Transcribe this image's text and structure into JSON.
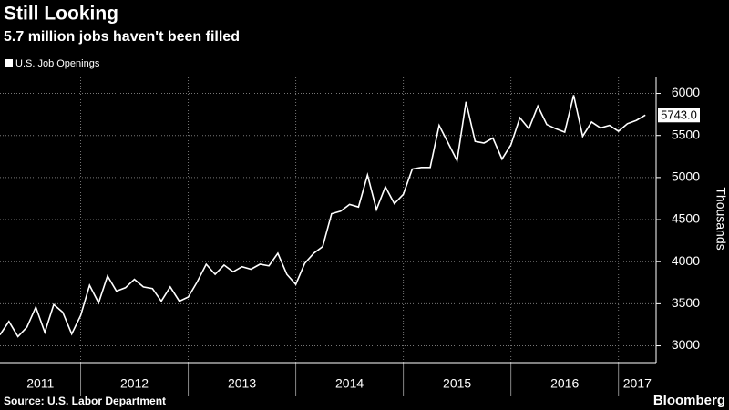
{
  "chart_data": {
    "type": "line",
    "title": "Still Looking",
    "subtitle": "5.7 million jobs haven't been filled",
    "y_axis_label": "Thousands",
    "source": "Source: U.S. Labor Department",
    "brand": "Bloomberg",
    "end_label": "5743.0",
    "x": [
      2011.25,
      2011.333,
      2011.417,
      2011.5,
      2011.583,
      2011.667,
      2011.75,
      2011.833,
      2011.917,
      2012,
      2012.083,
      2012.167,
      2012.25,
      2012.333,
      2012.417,
      2012.5,
      2012.583,
      2012.667,
      2012.75,
      2012.833,
      2012.917,
      2013,
      2013.083,
      2013.167,
      2013.25,
      2013.333,
      2013.417,
      2013.5,
      2013.583,
      2013.667,
      2013.75,
      2013.833,
      2013.917,
      2014,
      2014.083,
      2014.167,
      2014.25,
      2014.333,
      2014.417,
      2014.5,
      2014.583,
      2014.667,
      2014.75,
      2014.833,
      2014.917,
      2015,
      2015.083,
      2015.167,
      2015.25,
      2015.333,
      2015.417,
      2015.5,
      2015.583,
      2015.667,
      2015.75,
      2015.833,
      2015.917,
      2016,
      2016.083,
      2016.167,
      2016.25,
      2016.333,
      2016.417,
      2016.5,
      2016.583,
      2016.667,
      2016.75,
      2016.833,
      2016.917,
      2017,
      2017.083,
      2017.167,
      2017.25
    ],
    "series": [
      {
        "name": "U.S. Job Openings",
        "color": "#ffffff",
        "values": [
          3130,
          3290,
          3110,
          3220,
          3460,
          3160,
          3490,
          3400,
          3140,
          3360,
          3720,
          3510,
          3830,
          3650,
          3690,
          3790,
          3700,
          3680,
          3530,
          3700,
          3530,
          3580,
          3760,
          3970,
          3850,
          3960,
          3880,
          3940,
          3910,
          3970,
          3950,
          4100,
          3850,
          3730,
          3980,
          4100,
          4180,
          4570,
          4600,
          4680,
          4650,
          5030,
          4620,
          4890,
          4690,
          4800,
          5100,
          5120,
          5120,
          5620,
          5410,
          5200,
          5900,
          5430,
          5410,
          5470,
          5220,
          5390,
          5710,
          5580,
          5850,
          5630,
          5580,
          5540,
          5980,
          5490,
          5660,
          5590,
          5620,
          5550,
          5640,
          5680,
          5743
        ]
      }
    ],
    "categories": [
      "2011",
      "2012",
      "2013",
      "2014",
      "2015",
      "2016",
      "2017"
    ],
    "xlim": [
      2011.25,
      2017.35
    ],
    "xticks": [
      2012,
      2013,
      2014,
      2015,
      2016,
      2017
    ],
    "ylim": [
      2800,
      6190
    ],
    "yticks": [
      3000,
      3500,
      4000,
      4500,
      5000,
      5500,
      6000
    ],
    "grid": true
  }
}
